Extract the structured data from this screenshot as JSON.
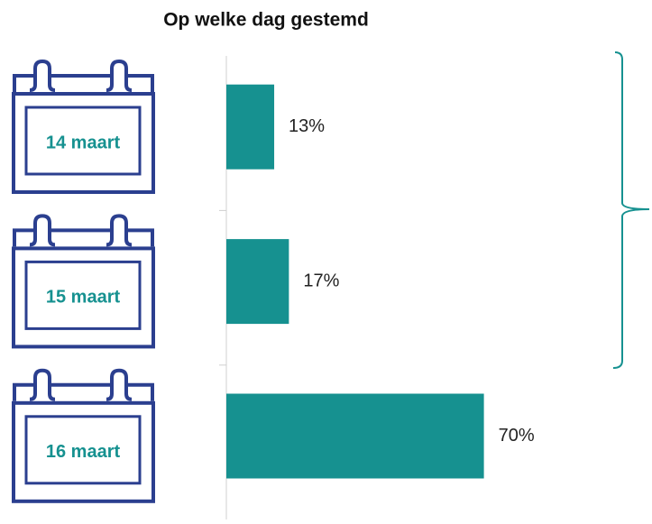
{
  "chart_data": {
    "type": "bar",
    "orientation": "horizontal",
    "title": "Op welke dag gestemd",
    "categories": [
      "14 maart",
      "15 maart",
      "16 maart"
    ],
    "values": [
      13,
      17,
      70
    ],
    "value_labels": [
      "13%",
      "17%",
      "70%"
    ],
    "color": "#169190",
    "xlim": [
      0,
      100
    ]
  }
}
